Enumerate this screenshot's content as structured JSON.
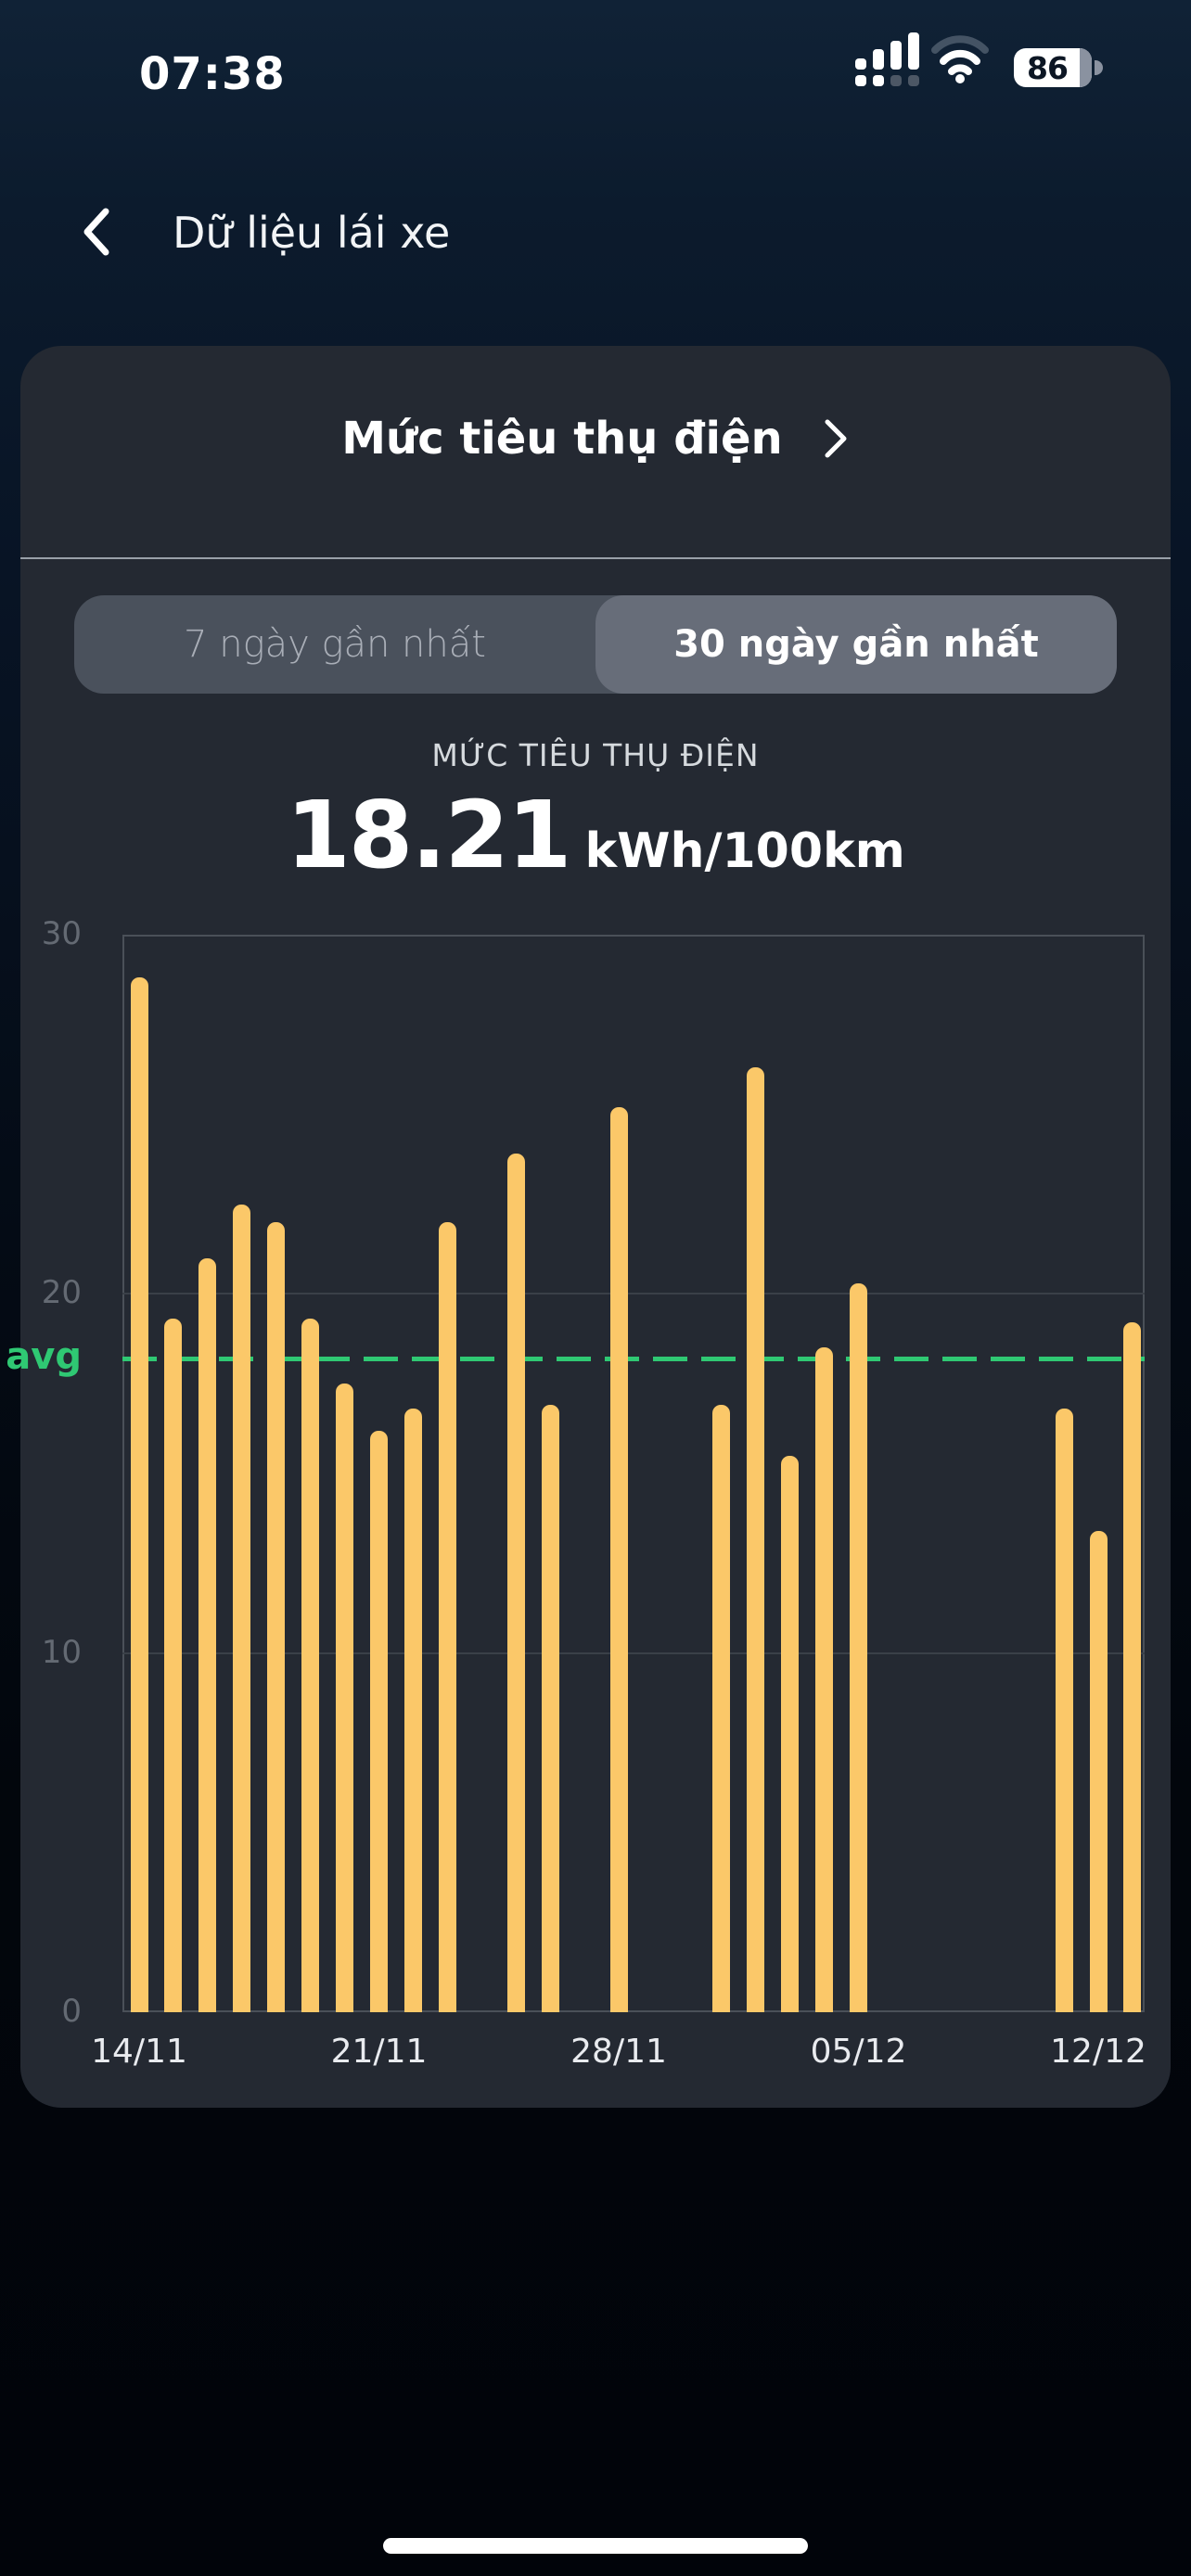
{
  "status_bar": {
    "time": "07:38",
    "battery_percent": "86"
  },
  "header": {
    "title": "Dữ liệu lái xe"
  },
  "card": {
    "title": "Mức tiêu thụ điện",
    "tabs": [
      {
        "label": "7 ngày gần nhất",
        "selected": false
      },
      {
        "label": "30 ngày gần nhất",
        "selected": true
      }
    ],
    "stat": {
      "label": "MỨC TIÊU THỤ ĐIỆN",
      "value": "18.21",
      "unit": "kWh/100km"
    }
  },
  "chart_data": {
    "type": "bar",
    "title": "Mức tiêu thụ điện (kWh/100km), 30 ngày gần nhất",
    "categories": [
      "14/11",
      "15/11",
      "16/11",
      "17/11",
      "18/11",
      "19/11",
      "20/11",
      "21/11",
      "22/11",
      "23/11",
      "24/11",
      "25/11",
      "26/11",
      "27/11",
      "28/11",
      "29/11",
      "30/11",
      "01/12",
      "02/12",
      "03/12",
      "04/12",
      "05/12",
      "06/12",
      "07/12",
      "08/12",
      "09/12",
      "10/12",
      "11/12",
      "12/12",
      "13/12"
    ],
    "values": [
      28.8,
      19.3,
      21.0,
      22.5,
      22.0,
      19.3,
      17.5,
      16.2,
      16.8,
      22.0,
      null,
      23.9,
      16.9,
      null,
      25.2,
      null,
      null,
      16.9,
      26.3,
      15.5,
      18.5,
      20.3,
      null,
      null,
      null,
      null,
      null,
      16.8,
      13.4,
      19.2
    ],
    "ylim": [
      0,
      30
    ],
    "yticks": [
      0,
      10,
      20,
      30
    ],
    "xticks": [
      {
        "index": 0,
        "label": "14/11"
      },
      {
        "index": 7,
        "label": "21/11"
      },
      {
        "index": 14,
        "label": "28/11"
      },
      {
        "index": 21,
        "label": "05/12"
      },
      {
        "index": 28,
        "label": "12/12"
      }
    ],
    "avg": {
      "label": "avg",
      "value": 18.21
    },
    "grid": true,
    "colors": {
      "bar": "#fbc869",
      "avg": "#2fc873",
      "grid": "#3a4048",
      "frame": "#4a5058",
      "ylabel": "#646a73",
      "xlabel": "#e9ebef"
    }
  }
}
